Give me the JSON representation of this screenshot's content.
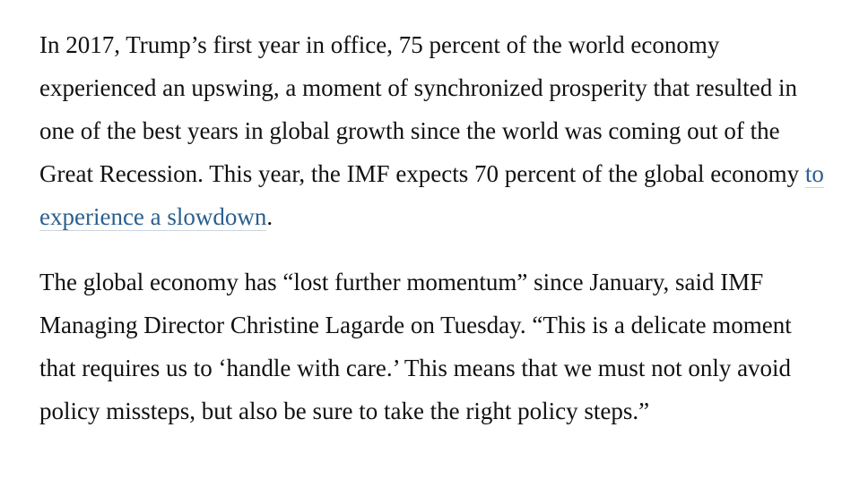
{
  "article": {
    "paragraph_1": {
      "before_link": "In 2017, Trump’s first year in office, 75 percent of the world economy experienced an upswing, a moment of synchronized prosperity that resulted in one of the best years in global growth since the world was coming out of the Great Recession. This year, the IMF expects 70 percent of the global economy ",
      "link_text": "to experience a slowdown",
      "after_link": "."
    },
    "paragraph_2": {
      "text": "The global economy has “lost further momentum” since January, said IMF Managing Director Christine Lagarde on Tuesday. “This is a delicate moment that requires us to ‘handle with care.’ This means that we must not only avoid policy missteps, but also be sure to take the right policy steps.”"
    },
    "colors": {
      "text": "#111111",
      "link": "#2a5f8f",
      "link_underline": "#c9d6e2",
      "background": "#ffffff"
    }
  }
}
